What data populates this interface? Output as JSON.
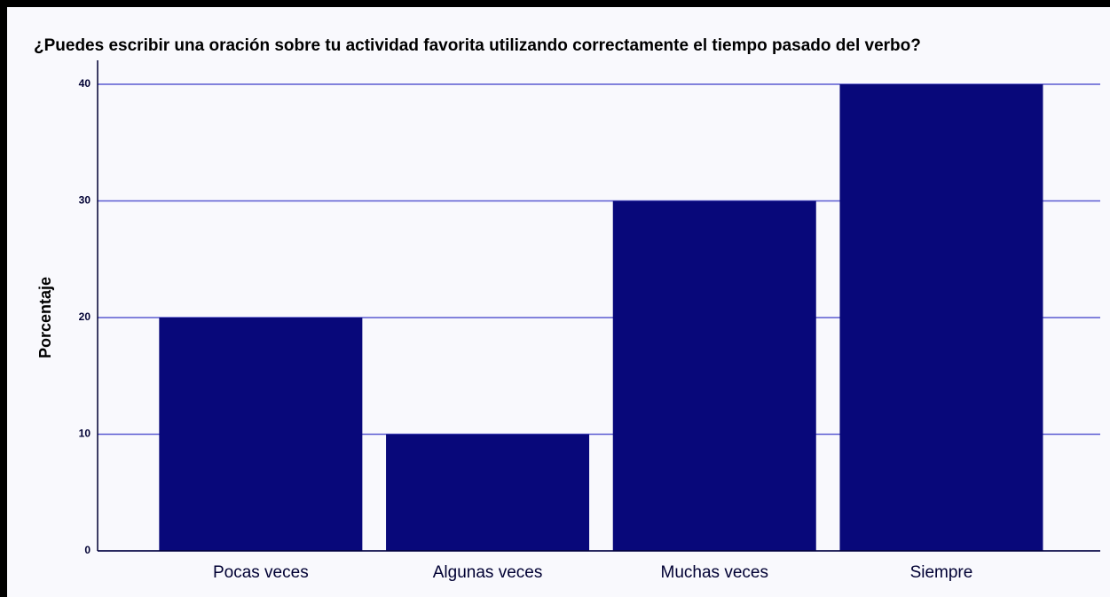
{
  "chart_data": {
    "type": "bar",
    "title": "¿Puedes escribir una oración sobre tu actividad favorita utilizando correctamente el tiempo pasado del verbo?",
    "y_label": "Porcentaje",
    "categories": [
      "Pocas veces",
      "Algunas veces",
      "Muchas veces",
      "Siempre"
    ],
    "values": [
      20,
      10,
      30,
      40
    ],
    "color": "#08087a",
    "ylim": [
      0,
      40
    ],
    "yticks": [
      0,
      10,
      20,
      30,
      40
    ],
    "grid": true
  }
}
